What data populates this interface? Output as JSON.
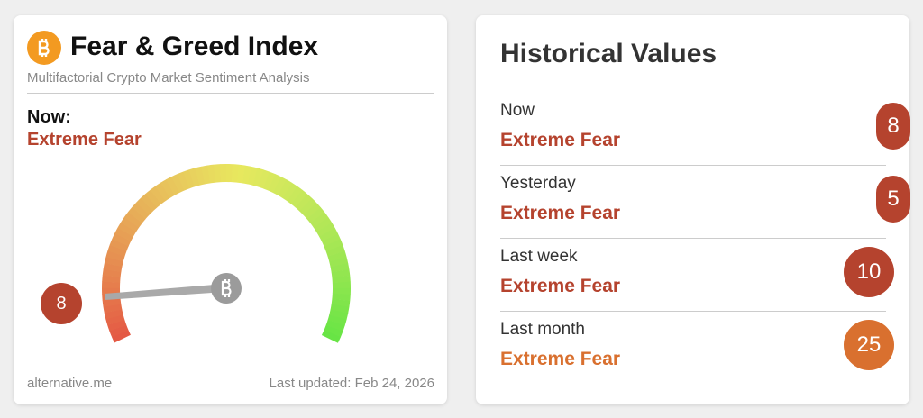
{
  "left_card": {
    "title": "Fear & Greed Index",
    "subtitle": "Multifactorial Crypto Market Sentiment Analysis",
    "now_label": "Now:",
    "classification": "Extreme Fear",
    "value": 8,
    "color": "#b5432e",
    "source": "alternative.me",
    "updated": "Last updated: Feb 24, 2026"
  },
  "right_card": {
    "title": "Historical Values",
    "rows": [
      {
        "label": "Now",
        "classification": "Extreme Fear",
        "value": 8,
        "color": "#b5432e"
      },
      {
        "label": "Yesterday",
        "classification": "Extreme Fear",
        "value": 5,
        "color": "#b5432e"
      },
      {
        "label": "Last week",
        "classification": "Extreme Fear",
        "value": 10,
        "color": "#b5432e"
      },
      {
        "label": "Last month",
        "classification": "Extreme Fear",
        "value": 25,
        "color": "#d9702f"
      }
    ]
  }
}
